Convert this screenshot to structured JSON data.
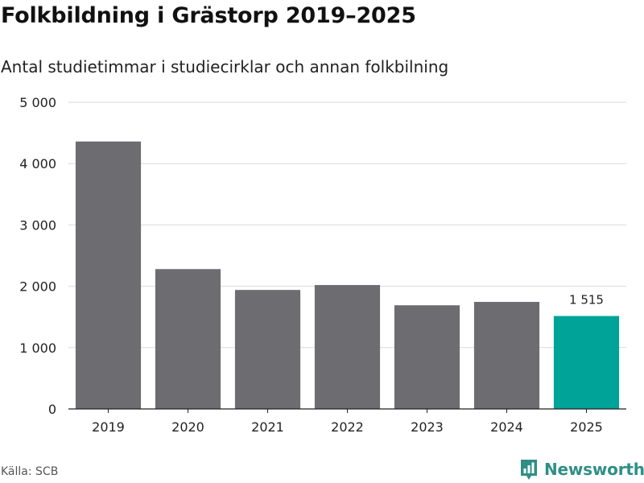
{
  "header": {
    "title": "Folkbildning i Grästorp 2019–2025",
    "subtitle": "Antal studietimmar i studiecirklar och annan folkbilning"
  },
  "footer": {
    "source": "Källa: SCB",
    "brand": "Newsworthy"
  },
  "colors": {
    "bar": "#6d6c71",
    "highlight": "#00a398",
    "grid": "#d9d9d9",
    "axis": "#222222",
    "brand": "#2f8f87"
  },
  "chart_data": {
    "type": "bar",
    "title": "Folkbildning i Grästorp 2019–2025",
    "subtitle": "Antal studietimmar i studiecirklar och annan folkbilning",
    "xlabel": "",
    "ylabel": "",
    "categories": [
      "2019",
      "2020",
      "2021",
      "2022",
      "2023",
      "2024",
      "2025"
    ],
    "values": [
      4360,
      2280,
      1940,
      2020,
      1690,
      1745,
      1515
    ],
    "highlight_index": 6,
    "data_labels": [
      {
        "index": 6,
        "text": "1 515"
      }
    ],
    "ylim": [
      0,
      5000
    ],
    "yticks": [
      0,
      1000,
      2000,
      3000,
      4000,
      5000
    ],
    "ytick_labels": [
      "0",
      "1 000",
      "2 000",
      "3 000",
      "4 000",
      "5 000"
    ],
    "grid": true,
    "legend": "none"
  }
}
